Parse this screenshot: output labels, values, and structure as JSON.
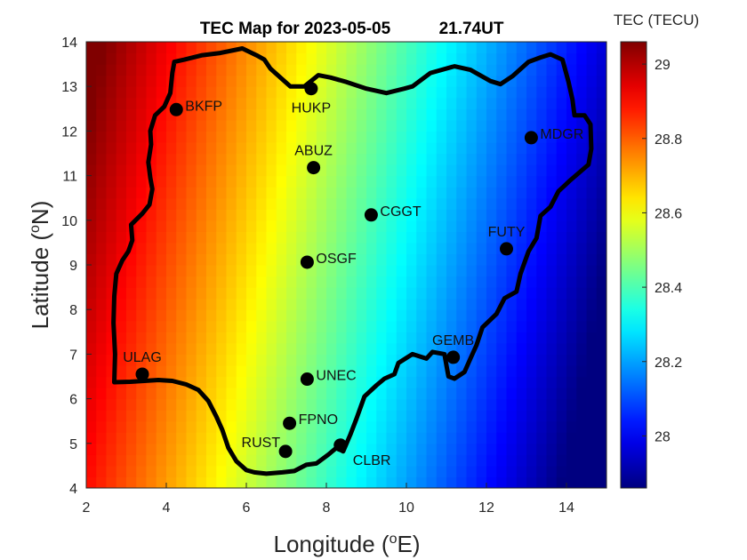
{
  "title": {
    "date_text": "TEC Map for 2023-05-05",
    "time_text": "21.74UT"
  },
  "x_axis": {
    "label": "Longitude (",
    "sup": "o",
    "suffix": "E)",
    "range": [
      2,
      15
    ],
    "ticks": [
      2,
      4,
      6,
      8,
      10,
      12,
      14
    ]
  },
  "y_axis": {
    "label": "Latitude (",
    "sup": "o",
    "suffix": "N)",
    "range": [
      4,
      14
    ],
    "ticks": [
      4,
      5,
      6,
      7,
      8,
      9,
      10,
      11,
      12,
      13,
      14
    ]
  },
  "colorbar": {
    "title": "TEC (TECU)",
    "range": [
      27.86,
      29.06
    ],
    "ticks": [
      "28",
      "28.2",
      "28.4",
      "28.6",
      "28.8",
      "29"
    ],
    "colormap": "jet"
  },
  "tec_field": {
    "west_value": 29.0,
    "east_value": 27.86,
    "tilt_per_degree_lat": 0.08
  },
  "stations": [
    {
      "name": "BKFP",
      "lon": 4.25,
      "lat": 12.48,
      "label_side": "right"
    },
    {
      "name": "HUKP",
      "lon": 7.62,
      "lat": 12.95,
      "label_side": "below"
    },
    {
      "name": "MDGR",
      "lon": 13.12,
      "lat": 11.85,
      "label_side": "right"
    },
    {
      "name": "ABUZ",
      "lon": 7.68,
      "lat": 11.18,
      "label_side": "above"
    },
    {
      "name": "CGGT",
      "lon": 9.12,
      "lat": 10.12,
      "label_side": "right"
    },
    {
      "name": "FUTY",
      "lon": 12.5,
      "lat": 9.36,
      "label_side": "above"
    },
    {
      "name": "OSGF",
      "lon": 7.52,
      "lat": 9.06,
      "label_side": "right"
    },
    {
      "name": "GEMB",
      "lon": 11.17,
      "lat": 6.93,
      "label_side": "above"
    },
    {
      "name": "ULAG",
      "lon": 3.4,
      "lat": 6.55,
      "label_side": "above"
    },
    {
      "name": "UNEC",
      "lon": 7.52,
      "lat": 6.44,
      "label_side": "right"
    },
    {
      "name": "FPNO",
      "lon": 7.08,
      "lat": 5.45,
      "label_side": "right"
    },
    {
      "name": "RUST",
      "lon": 6.98,
      "lat": 4.82,
      "label_side": "left"
    },
    {
      "name": "CLBR",
      "lon": 8.35,
      "lat": 4.96,
      "label_side": "below-right"
    }
  ],
  "boundary": [
    [
      2.7,
      6.37
    ],
    [
      2.72,
      7.0
    ],
    [
      2.68,
      7.7
    ],
    [
      2.7,
      8.3
    ],
    [
      2.75,
      8.8
    ],
    [
      2.9,
      9.1
    ],
    [
      3.05,
      9.3
    ],
    [
      3.15,
      9.55
    ],
    [
      3.12,
      9.9
    ],
    [
      3.4,
      10.15
    ],
    [
      3.58,
      10.35
    ],
    [
      3.65,
      10.7
    ],
    [
      3.6,
      10.95
    ],
    [
      3.55,
      11.3
    ],
    [
      3.62,
      11.7
    ],
    [
      3.6,
      12.0
    ],
    [
      3.72,
      12.35
    ],
    [
      3.95,
      12.55
    ],
    [
      4.1,
      12.85
    ],
    [
      4.15,
      13.3
    ],
    [
      4.2,
      13.55
    ],
    [
      4.45,
      13.6
    ],
    [
      4.9,
      13.7
    ],
    [
      5.35,
      13.75
    ],
    [
      5.9,
      13.85
    ],
    [
      6.25,
      13.7
    ],
    [
      6.45,
      13.6
    ],
    [
      6.6,
      13.4
    ],
    [
      6.85,
      13.2
    ],
    [
      7.1,
      13.0
    ],
    [
      7.45,
      13.0
    ],
    [
      7.8,
      13.25
    ],
    [
      8.1,
      13.2
    ],
    [
      8.5,
      13.1
    ],
    [
      9.0,
      12.95
    ],
    [
      9.5,
      12.85
    ],
    [
      9.95,
      12.95
    ],
    [
      10.15,
      13.0
    ],
    [
      10.6,
      13.3
    ],
    [
      11.2,
      13.45
    ],
    [
      11.6,
      13.37
    ],
    [
      12.1,
      13.12
    ],
    [
      12.35,
      13.05
    ],
    [
      12.65,
      13.23
    ],
    [
      13.05,
      13.55
    ],
    [
      13.35,
      13.65
    ],
    [
      13.6,
      13.72
    ],
    [
      13.9,
      13.6
    ],
    [
      14.05,
      13.1
    ],
    [
      14.15,
      12.7
    ],
    [
      14.2,
      12.35
    ],
    [
      14.45,
      12.35
    ],
    [
      14.6,
      12.15
    ],
    [
      14.62,
      11.6
    ],
    [
      14.55,
      11.25
    ],
    [
      14.1,
      10.9
    ],
    [
      13.8,
      10.65
    ],
    [
      13.6,
      10.3
    ],
    [
      13.35,
      10.1
    ],
    [
      13.25,
      9.6
    ],
    [
      13.05,
      9.3
    ],
    [
      12.85,
      8.8
    ],
    [
      12.75,
      8.4
    ],
    [
      12.45,
      8.25
    ],
    [
      12.25,
      7.9
    ],
    [
      11.9,
      7.6
    ],
    [
      11.75,
      7.2
    ],
    [
      11.6,
      6.9
    ],
    [
      11.45,
      6.6
    ],
    [
      11.2,
      6.45
    ],
    [
      11.05,
      6.5
    ],
    [
      11.0,
      6.75
    ],
    [
      10.95,
      7.0
    ],
    [
      10.65,
      7.05
    ],
    [
      10.5,
      6.9
    ],
    [
      10.15,
      7.0
    ],
    [
      9.8,
      6.8
    ],
    [
      9.7,
      6.55
    ],
    [
      9.45,
      6.45
    ],
    [
      9.25,
      6.3
    ],
    [
      8.95,
      6.05
    ],
    [
      8.85,
      5.8
    ],
    [
      8.75,
      5.55
    ],
    [
      8.6,
      5.2
    ],
    [
      8.42,
      4.82
    ],
    [
      8.25,
      4.9
    ],
    [
      8.05,
      4.75
    ],
    [
      7.75,
      4.55
    ],
    [
      7.5,
      4.52
    ],
    [
      7.2,
      4.38
    ],
    [
      6.9,
      4.35
    ],
    [
      6.5,
      4.32
    ],
    [
      6.2,
      4.35
    ],
    [
      6.0,
      4.4
    ],
    [
      5.75,
      4.6
    ],
    [
      5.55,
      4.9
    ],
    [
      5.4,
      5.3
    ],
    [
      5.25,
      5.6
    ],
    [
      5.05,
      5.95
    ],
    [
      4.8,
      6.2
    ],
    [
      4.5,
      6.32
    ],
    [
      4.15,
      6.4
    ],
    [
      3.8,
      6.42
    ],
    [
      3.45,
      6.4
    ],
    [
      3.1,
      6.38
    ],
    [
      2.7,
      6.37
    ]
  ]
}
